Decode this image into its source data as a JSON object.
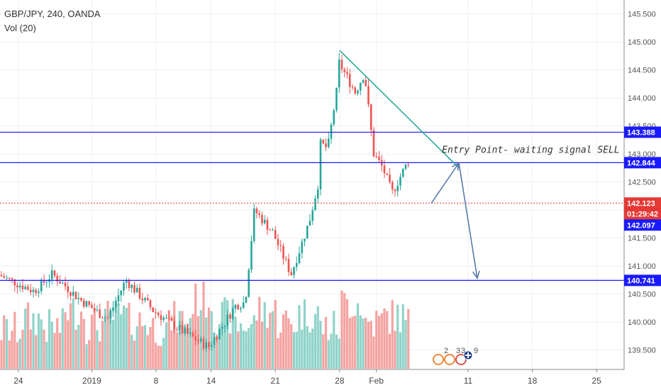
{
  "header": {
    "symbol_line": "GBP/JPY, 240, OANDA",
    "indicator_line": "Vol (20)"
  },
  "annotation": {
    "text": "Entry Point- waiting signal SELL"
  },
  "event_badges": {
    "label_a": "2",
    "label_b": "3",
    "label_c": "3",
    "label_d": "9"
  },
  "colors": {
    "up": "#26a69a",
    "down": "#ef5350",
    "vol_up": "#8fd3c9",
    "vol_down": "#f4a3a1",
    "level_line": "#1a1aff",
    "trend_line": "#22a596",
    "arrow": "#5b7aa8",
    "price_tag": "#e53935",
    "countdown_tag": "#e53935"
  },
  "chart_data": {
    "type": "candlestick",
    "title": "GBP/JPY, 240, OANDA",
    "ylim": [
      139.15,
      145.75
    ],
    "y_ticks": [
      "139.500",
      "140.000",
      "140.500",
      "141.000",
      "141.500",
      "142.000",
      "142.500",
      "143.000",
      "143.500",
      "144.000",
      "144.500",
      "145.000",
      "145.500"
    ],
    "y_tick_values": [
      139.5,
      140.0,
      140.5,
      141.0,
      141.5,
      142.0,
      142.5,
      143.0,
      143.5,
      144.0,
      144.5,
      145.0,
      145.5
    ],
    "x_ticks": [
      "24",
      "2019",
      "8",
      "14",
      "21",
      "28",
      "Feb",
      "11",
      "18",
      "25"
    ],
    "x_tick_dates": [
      "2018-12-24",
      "2019-01-01",
      "2019-01-08",
      "2019-01-14",
      "2019-01-21",
      "2019-01-28",
      "2019-02-01",
      "2019-02-11",
      "2019-02-18",
      "2019-02-25"
    ],
    "xlim": [
      "2018-12-22",
      "2019-02-28"
    ],
    "last_candle_date": "2019-02-05",
    "horizontal_levels": [
      {
        "label": "143.388",
        "value": 143.388
      },
      {
        "label": "142.844",
        "value": 142.844
      },
      {
        "label": "140.741",
        "value": 140.741
      }
    ],
    "price_tags": [
      {
        "label": "142.123",
        "value": 142.123,
        "kind": "last"
      },
      {
        "label": "01:29:42",
        "value": 141.93,
        "kind": "countdown"
      },
      {
        "label": "142.097",
        "value": 141.73,
        "kind": "bid"
      }
    ],
    "trendline": {
      "from": [
        "2019-01-28",
        144.85
      ],
      "to": [
        "2019-02-10",
        142.75
      ]
    },
    "projection_path": [
      [
        "2019-02-07",
        142.12
      ],
      [
        "2019-02-10",
        142.84
      ],
      [
        "2019-02-12",
        140.78
      ]
    ],
    "anchors": [
      {
        "date": "2018-12-22",
        "price": 140.85
      },
      {
        "date": "2018-12-26",
        "price": 140.55
      },
      {
        "date": "2018-12-28",
        "price": 140.85
      },
      {
        "date": "2018-12-31",
        "price": 140.4
      },
      {
        "date": "2019-01-03",
        "price": 140.05
      },
      {
        "date": "2019-01-05",
        "price": 140.75
      },
      {
        "date": "2019-01-08",
        "price": 140.2
      },
      {
        "date": "2019-01-11",
        "price": 139.85
      },
      {
        "date": "2019-01-14",
        "price": 139.55
      },
      {
        "date": "2019-01-17",
        "price": 140.3
      },
      {
        "date": "2019-01-18",
        "price": 140.35
      },
      {
        "date": "2019-01-19",
        "price": 142.0
      },
      {
        "date": "2019-01-21",
        "price": 141.6
      },
      {
        "date": "2019-01-23",
        "price": 140.85
      },
      {
        "date": "2019-01-25",
        "price": 141.8
      },
      {
        "date": "2019-01-26",
        "price": 142.5
      },
      {
        "date": "2019-01-26",
        "price": 143.2
      },
      {
        "date": "2019-01-27",
        "price": 143.1
      },
      {
        "date": "2019-01-28",
        "price": 144.15
      },
      {
        "date": "2019-01-28",
        "price": 144.7
      },
      {
        "date": "2019-01-30",
        "price": 144.1
      },
      {
        "date": "2019-01-31",
        "price": 144.45
      },
      {
        "date": "2019-02-01",
        "price": 143.0
      },
      {
        "date": "2019-02-02",
        "price": 142.75
      },
      {
        "date": "2019-02-03",
        "price": 142.3
      },
      {
        "date": "2019-02-05",
        "price": 142.95
      },
      {
        "date": "2019-02-06",
        "price": 143.45
      },
      {
        "date": "2019-02-06",
        "price": 143.4
      },
      {
        "date": "2019-02-08",
        "price": 142.75
      },
      {
        "date": "2019-02-08",
        "price": 142.12
      }
    ],
    "volume_anchors": [
      0.35,
      0.55,
      0.4,
      0.7,
      0.45,
      0.6,
      0.5,
      0.4,
      0.55,
      0.9,
      0.6,
      0.45,
      0.7,
      0.5,
      0.65,
      0.4,
      0.85,
      0.5,
      0.6,
      0.45,
      0.3
    ]
  }
}
